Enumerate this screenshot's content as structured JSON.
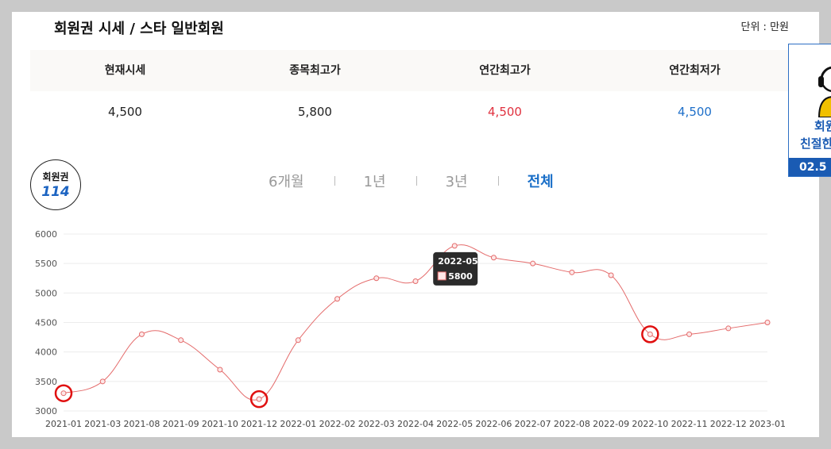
{
  "header": {
    "title": "회원권 시세 / 스타 일반회원",
    "unit": "단위 : 만원"
  },
  "stats": {
    "labels": [
      "현재시세",
      "종목최고가",
      "연간최고가",
      "연간최저가"
    ],
    "values": [
      "4,500",
      "5,800",
      "4,500",
      "4,500"
    ]
  },
  "logo": {
    "line1": "회원권",
    "line2": "114"
  },
  "tabs": [
    {
      "label": "6개월",
      "active": false
    },
    {
      "label": "1년",
      "active": false
    },
    {
      "label": "3년",
      "active": false
    },
    {
      "label": "전체",
      "active": true
    }
  ],
  "side_banner": {
    "line1": "회원",
    "line2": "친절한",
    "line3": "02.5"
  },
  "colors": {
    "line": "#e46b6b",
    "highlight": "#e01010",
    "tab_active": "#1a6fc8",
    "high": "#e0313f",
    "low": "#1e6fc9"
  },
  "chart_data": {
    "type": "line",
    "categories": [
      "2021-01",
      "2021-03",
      "2021-08",
      "2021-09",
      "2021-10",
      "2021-12",
      "2022-01",
      "2022-02",
      "2022-03",
      "2022-04",
      "2022-05",
      "2022-06",
      "2022-07",
      "2022-08",
      "2022-09",
      "2022-10",
      "2022-11",
      "2022-12",
      "2023-01"
    ],
    "values": [
      3300,
      3500,
      4300,
      4200,
      3700,
      3200,
      4200,
      4900,
      5250,
      5200,
      5800,
      5600,
      5500,
      5350,
      5300,
      4300,
      4300,
      4400,
      4500
    ],
    "ylim": [
      3000,
      6000
    ],
    "yticks": [
      3000,
      3500,
      4000,
      4500,
      5000,
      5500,
      6000
    ],
    "grid": true,
    "highlighted_categories": [
      "2021-01",
      "2021-12",
      "2022-10"
    ],
    "tooltip": {
      "category": "2022-05",
      "value": "5800"
    }
  }
}
